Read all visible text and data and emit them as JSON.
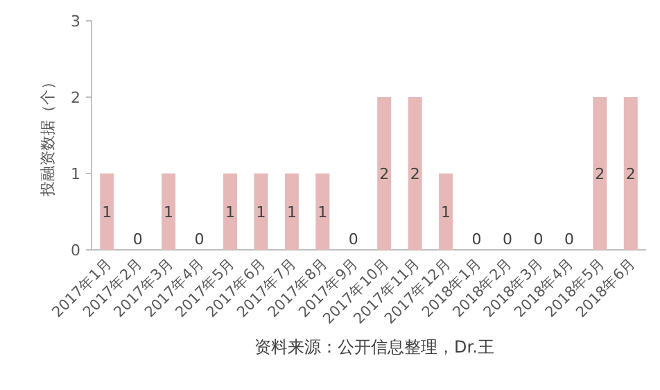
{
  "chart_data": {
    "type": "bar",
    "ylabel": "投融资数据（个）",
    "categories": [
      "2017年1月",
      "2017年2月",
      "2017年3月",
      "2017年4月",
      "2017年5月",
      "2017年6月",
      "2017年7月",
      "2017年8月",
      "2017年9月",
      "2017年10月",
      "2017年11月",
      "2017年12月",
      "2018年1月",
      "2018年2月",
      "2018年3月",
      "2018年4月",
      "2018年5月",
      "2018年6月"
    ],
    "values": [
      1,
      0,
      1,
      0,
      1,
      1,
      1,
      1,
      0,
      2,
      2,
      1,
      0,
      0,
      0,
      0,
      2,
      2
    ],
    "color": "#e6b9b8",
    "ylim": [
      0,
      3
    ],
    "yticks": [
      0,
      1,
      2,
      3
    ],
    "data_labels": true,
    "annotations": [
      "资料来源：公开信息整理，Dr.王"
    ]
  }
}
